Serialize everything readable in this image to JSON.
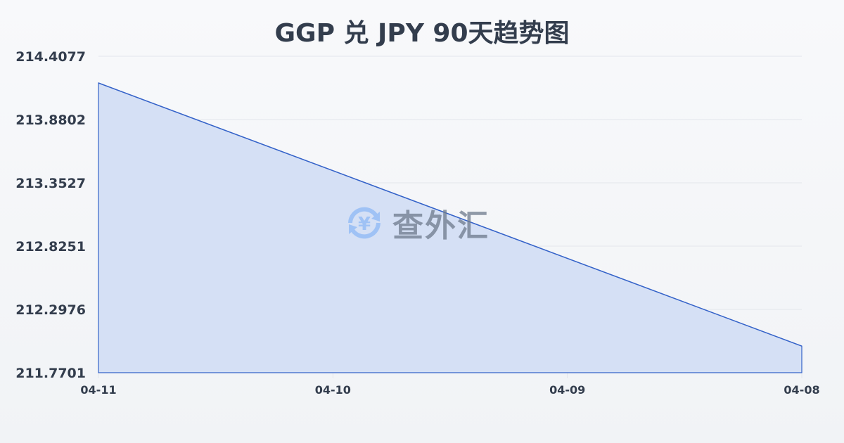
{
  "chart_data": {
    "type": "area",
    "title": "GGP 兑 JPY 90天趋势图",
    "xlabel": "",
    "ylabel": "",
    "categories": [
      "04-11",
      "04-10",
      "04-09",
      "04-08"
    ],
    "values": [
      214.185,
      213.454,
      212.723,
      211.992
    ],
    "yticks": [
      "214.4077",
      "213.8802",
      "213.3527",
      "212.8251",
      "212.2976",
      "211.7701"
    ],
    "ylim": [
      211.7701,
      214.4077
    ],
    "grid": true,
    "line_color": "#3563c9",
    "fill_color": "#d5e0f5"
  },
  "watermark": {
    "text": "查外汇",
    "icon": "yen-exchange-icon",
    "color": "#4a8ef0"
  }
}
